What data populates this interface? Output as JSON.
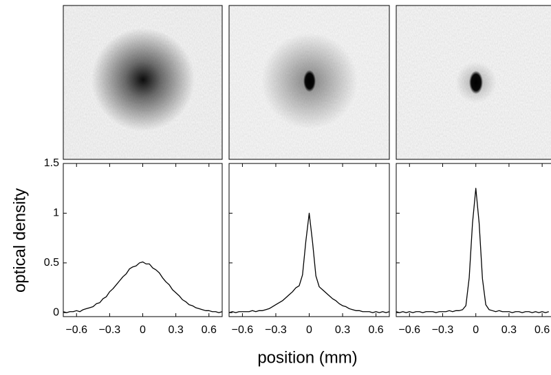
{
  "chart_data": [
    {
      "type": "line",
      "color": "#000000",
      "ylabel": "optical density",
      "xlim": [
        -0.72,
        0.72
      ],
      "ylim": [
        -0.04,
        1.5
      ],
      "xticks": [
        {
          "value": -0.6,
          "label": "−0.6"
        },
        {
          "value": -0.3,
          "label": "−0.3"
        },
        0,
        0.3,
        0.6
      ],
      "yticks": [
        0,
        0.5,
        1,
        1.5
      ],
      "x": [
        -0.72,
        -0.69,
        -0.66,
        -0.63,
        -0.6,
        -0.57,
        -0.54,
        -0.51,
        -0.48,
        -0.45,
        -0.42,
        -0.39,
        -0.36,
        -0.33,
        -0.3,
        -0.27,
        -0.24,
        -0.21,
        -0.18,
        -0.15,
        -0.12,
        -0.09,
        -0.06,
        -0.03,
        0,
        0.03,
        0.06,
        0.09,
        0.12,
        0.15,
        0.18,
        0.21,
        0.24,
        0.27,
        0.3,
        0.33,
        0.36,
        0.39,
        0.42,
        0.45,
        0.48,
        0.51,
        0.54,
        0.57,
        0.6,
        0.63,
        0.66,
        0.69,
        0.72
      ],
      "values": [
        0.01,
        0.0,
        0.01,
        0.01,
        0.02,
        0.01,
        0.03,
        0.04,
        0.05,
        0.06,
        0.09,
        0.1,
        0.14,
        0.16,
        0.21,
        0.24,
        0.28,
        0.32,
        0.36,
        0.39,
        0.44,
        0.46,
        0.47,
        0.5,
        0.51,
        0.49,
        0.49,
        0.45,
        0.43,
        0.4,
        0.35,
        0.31,
        0.28,
        0.23,
        0.2,
        0.17,
        0.13,
        0.11,
        0.08,
        0.07,
        0.05,
        0.04,
        0.03,
        0.02,
        0.02,
        0.01,
        0.01,
        0.0,
        0.01
      ]
    },
    {
      "type": "line",
      "color": "#000000",
      "xlabel": "position (mm)",
      "xlim": [
        -0.72,
        0.72
      ],
      "ylim": [
        -0.04,
        1.5
      ],
      "xticks": [
        {
          "value": -0.6,
          "label": "−0.6"
        },
        {
          "value": -0.3,
          "label": "−0.3"
        },
        0,
        0.3,
        0.6
      ],
      "yticks": [
        0,
        0.5,
        1,
        1.5
      ],
      "x": [
        -0.72,
        -0.69,
        -0.66,
        -0.63,
        -0.6,
        -0.57,
        -0.54,
        -0.51,
        -0.48,
        -0.45,
        -0.42,
        -0.39,
        -0.36,
        -0.33,
        -0.3,
        -0.27,
        -0.24,
        -0.21,
        -0.18,
        -0.15,
        -0.12,
        -0.09,
        -0.06,
        -0.03,
        0,
        0.03,
        0.06,
        0.09,
        0.12,
        0.15,
        0.18,
        0.21,
        0.24,
        0.27,
        0.3,
        0.33,
        0.36,
        0.39,
        0.42,
        0.45,
        0.48,
        0.51,
        0.54,
        0.57,
        0.6,
        0.63,
        0.66,
        0.69,
        0.72
      ],
      "values": [
        0.0,
        0.01,
        0.0,
        0.01,
        0.01,
        0.01,
        0.01,
        0.02,
        0.01,
        0.02,
        0.02,
        0.03,
        0.04,
        0.06,
        0.08,
        0.1,
        0.12,
        0.15,
        0.18,
        0.21,
        0.25,
        0.27,
        0.38,
        0.72,
        1.0,
        0.71,
        0.37,
        0.26,
        0.23,
        0.2,
        0.17,
        0.14,
        0.12,
        0.09,
        0.07,
        0.06,
        0.04,
        0.03,
        0.02,
        0.02,
        0.01,
        0.01,
        0.01,
        0.0,
        0.01,
        0.0,
        0.01,
        0.0,
        0.01
      ]
    },
    {
      "type": "line",
      "color": "#000000",
      "xlim": [
        -0.72,
        0.68
      ],
      "ylim": [
        -0.04,
        1.5
      ],
      "xticks": [
        {
          "value": -0.6,
          "label": "−0.6"
        },
        {
          "value": -0.3,
          "label": "−0.3"
        },
        0,
        0.3,
        0.6
      ],
      "yticks": [
        0,
        0.5,
        1,
        1.5
      ],
      "x": [
        -0.72,
        -0.69,
        -0.66,
        -0.63,
        -0.6,
        -0.57,
        -0.54,
        -0.51,
        -0.48,
        -0.45,
        -0.42,
        -0.39,
        -0.36,
        -0.33,
        -0.3,
        -0.27,
        -0.24,
        -0.21,
        -0.18,
        -0.15,
        -0.12,
        -0.09,
        -0.06,
        -0.03,
        0,
        0.03,
        0.06,
        0.09,
        0.12,
        0.15,
        0.18,
        0.21,
        0.24,
        0.27,
        0.3,
        0.33,
        0.36,
        0.39,
        0.42,
        0.45,
        0.48,
        0.51,
        0.54,
        0.57,
        0.6,
        0.63,
        0.66
      ],
      "values": [
        0.01,
        0.0,
        0.01,
        0.0,
        0.01,
        0.0,
        0.01,
        0.01,
        0.0,
        0.01,
        0.01,
        0.01,
        0.0,
        0.01,
        0.01,
        0.01,
        0.02,
        0.01,
        0.02,
        0.02,
        0.03,
        0.07,
        0.35,
        0.9,
        1.25,
        0.9,
        0.34,
        0.08,
        0.03,
        0.02,
        0.01,
        0.02,
        0.01,
        0.01,
        0.01,
        0.0,
        0.01,
        0.01,
        0.0,
        0.01,
        0.01,
        0.0,
        0.01,
        0.0,
        0.01,
        0.0,
        0.01
      ]
    }
  ]
}
